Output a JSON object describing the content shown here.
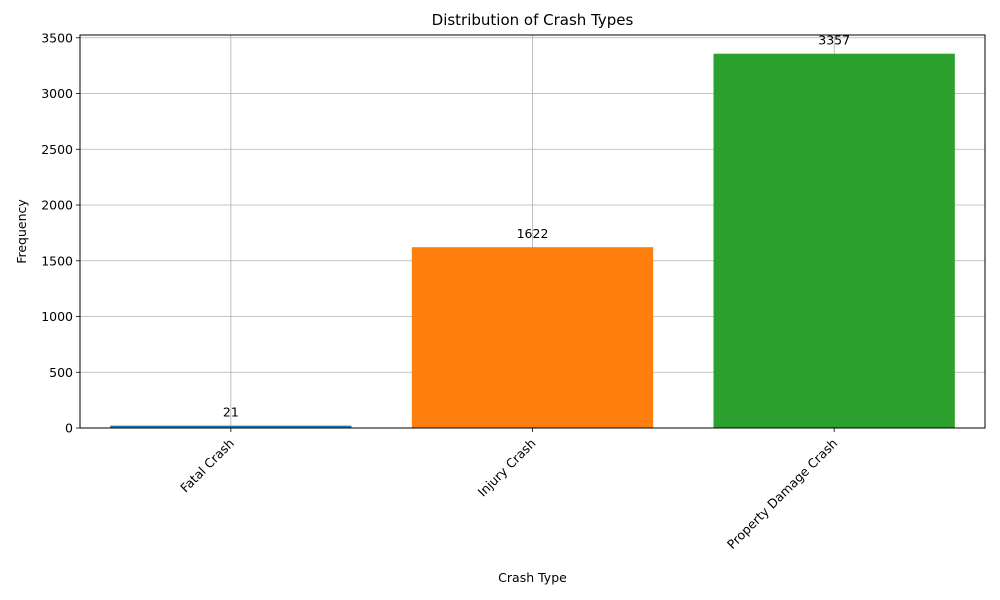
{
  "chart_data": {
    "type": "bar",
    "title": "Distribution of Crash Types",
    "xlabel": "Crash Type",
    "ylabel": "Frequency",
    "categories": [
      "Fatal Crash",
      "Injury Crash",
      "Property Damage Crash"
    ],
    "values": [
      21,
      1622,
      3357
    ],
    "data_labels": [
      "21",
      "1622",
      "3357"
    ],
    "colors": [
      "#1f77b4",
      "#ff7f0e",
      "#2ca02c"
    ],
    "ylim": [
      0,
      3525
    ],
    "yticks": [
      0,
      500,
      1000,
      1500,
      2000,
      2500,
      3000,
      3500
    ],
    "grid": true,
    "legend": "none"
  }
}
